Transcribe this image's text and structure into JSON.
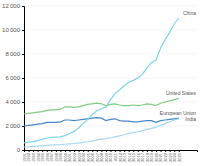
{
  "chart_data": {
    "type": "line",
    "x": [
      1991,
      1992,
      1993,
      1994,
      1995,
      1996,
      1997,
      1998,
      1999,
      2000,
      2001,
      2002,
      2003,
      2004,
      2005,
      2006,
      2007,
      2008,
      2009,
      2010,
      2011,
      2012,
      2013,
      2014,
      2015,
      2016,
      2017,
      2018,
      2019,
      2020,
      2021,
      2022,
      2023,
      2024,
      2025
    ],
    "xlim": [
      1991,
      2029
    ],
    "xticks": [
      1991,
      1992,
      1993,
      1994,
      1995,
      1996,
      1997,
      1998,
      1999,
      2000,
      2001,
      2002,
      2003,
      2004,
      2005,
      2006,
      2007,
      2008,
      2009,
      2010,
      2011,
      2012,
      2013,
      2014,
      2015,
      2016,
      2017,
      2018,
      2019,
      2020,
      2021,
      2022,
      2023,
      2024,
      2025
    ],
    "ylim": [
      0,
      12000
    ],
    "yticks": [
      0,
      {
        "value": 2000,
        "label": "2 000"
      },
      {
        "value": 4000,
        "label": "4 000"
      },
      {
        "value": 6000,
        "label": "6 000"
      },
      {
        "value": 8000,
        "label": "8 000"
      },
      {
        "value": 10000,
        "label": "10 000"
      },
      {
        "value": 12000,
        "label": "12 000"
      }
    ],
    "grid": true,
    "series": [
      {
        "name": "European Union",
        "color": "#4a86c8",
        "values": [
          2000,
          2050,
          2100,
          2150,
          2200,
          2300,
          2300,
          2300,
          2350,
          2500,
          2500,
          2450,
          2500,
          2550,
          2600,
          2650,
          2700,
          2650,
          2450,
          2550,
          2600,
          2450,
          2400,
          2400,
          2350,
          2350,
          2400,
          2450,
          2450,
          2300,
          2450,
          2500,
          2550,
          2600,
          2650
        ]
      },
      {
        "name": "United States",
        "color": "#80cc80",
        "values": [
          3000,
          3050,
          3100,
          3150,
          3200,
          3300,
          3350,
          3350,
          3400,
          3600,
          3600,
          3550,
          3600,
          3700,
          3800,
          3850,
          3900,
          3850,
          3700,
          3800,
          3850,
          3750,
          3700,
          3700,
          3750,
          3700,
          3750,
          3850,
          3800,
          3700,
          3900,
          4000,
          4100,
          4200,
          4300
        ]
      },
      {
        "name": "India",
        "color": "#a8d8f0",
        "values": [
          250,
          270,
          295,
          320,
          350,
          380,
          410,
          430,
          450,
          480,
          510,
          540,
          580,
          630,
          690,
          760,
          840,
          910,
          950,
          1020,
          1100,
          1180,
          1270,
          1380,
          1450,
          1520,
          1620,
          1720,
          1800,
          1900,
          2050,
          2200,
          2350,
          2500,
          2600
        ]
      },
      {
        "name": "China",
        "color": "#7dd3f0",
        "values": [
          600,
          650,
          700,
          780,
          880,
          980,
          1060,
          1080,
          1100,
          1200,
          1350,
          1550,
          1850,
          2200,
          2550,
          2960,
          3270,
          3440,
          3580,
          4200,
          4700,
          5000,
          5350,
          5650,
          5800,
          6000,
          6300,
          6850,
          7300,
          7500,
          8500,
          9200,
          9800,
          10500,
          11000
        ]
      }
    ]
  }
}
